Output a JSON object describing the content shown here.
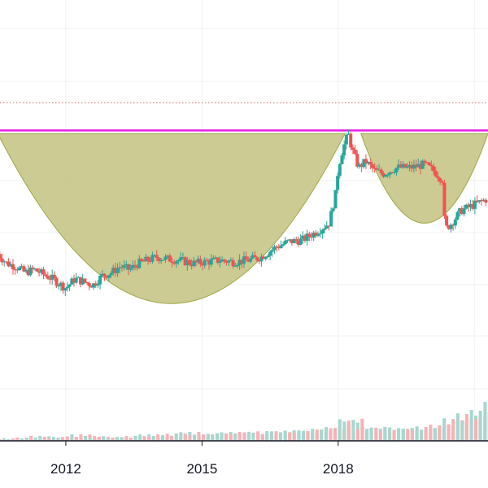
{
  "colors": {
    "up": "#26a69a",
    "down": "#ef5350",
    "volume_up": "#a7d7cf",
    "volume_down": "#f5b3b7",
    "pattern_fill": "#c9c98e",
    "pattern_stroke": "#9aa43c",
    "resistance_line": "#e81ee8",
    "dotted_line": "#e06060",
    "grid": "#eef0f3"
  },
  "chart_data": {
    "type": "candlestick",
    "title": "",
    "xlabel": "",
    "ylabel": "",
    "x_ticks": [
      "2012",
      "2015",
      "2018"
    ],
    "x_range": [
      2010.55,
      2021.3
    ],
    "y_range": [
      0,
      100
    ],
    "grid": true,
    "resistance_level": 82,
    "dotted_level": 91,
    "patterns": [
      {
        "name": "cup",
        "start": 2010.5,
        "end": 2018.15,
        "rim": 81,
        "bottom": 26
      },
      {
        "name": "handle",
        "start": 2018.5,
        "end": 2021.3,
        "rim": 81,
        "bottom": 52
      }
    ],
    "trend": [
      [
        2010.5,
        42
      ],
      [
        2010.7,
        39
      ],
      [
        2010.9,
        38
      ],
      [
        2011.1,
        36
      ],
      [
        2011.3,
        37
      ],
      [
        2011.5,
        35.5
      ],
      [
        2011.7,
        34
      ],
      [
        2011.9,
        32
      ],
      [
        2012.0,
        31
      ],
      [
        2012.2,
        34
      ],
      [
        2012.4,
        33
      ],
      [
        2012.6,
        32
      ],
      [
        2012.8,
        35
      ],
      [
        2013.0,
        36
      ],
      [
        2013.2,
        38
      ],
      [
        2013.4,
        37
      ],
      [
        2013.6,
        39
      ],
      [
        2013.8,
        40
      ],
      [
        2014.0,
        41
      ],
      [
        2014.2,
        40.5
      ],
      [
        2014.5,
        40
      ],
      [
        2014.8,
        39
      ],
      [
        2015.1,
        39.5
      ],
      [
        2015.4,
        40
      ],
      [
        2015.7,
        39.5
      ],
      [
        2016.0,
        40
      ],
      [
        2016.3,
        41
      ],
      [
        2016.6,
        44
      ],
      [
        2016.9,
        46
      ],
      [
        2017.2,
        46.5
      ],
      [
        2017.5,
        49
      ],
      [
        2017.8,
        52
      ],
      [
        2017.95,
        62
      ],
      [
        2018.0,
        70
      ],
      [
        2018.1,
        76
      ],
      [
        2018.22,
        81
      ],
      [
        2018.3,
        76
      ],
      [
        2018.45,
        70
      ],
      [
        2018.6,
        72
      ],
      [
        2018.8,
        69
      ],
      [
        2019.0,
        68
      ],
      [
        2019.3,
        70
      ],
      [
        2019.6,
        70
      ],
      [
        2019.9,
        71
      ],
      [
        2020.1,
        69
      ],
      [
        2020.3,
        66
      ],
      [
        2020.35,
        50
      ],
      [
        2020.5,
        52
      ],
      [
        2020.7,
        56
      ],
      [
        2021.0,
        58
      ],
      [
        2021.3,
        60
      ]
    ],
    "volume": [
      [
        2010.5,
        3,
        1
      ],
      [
        2010.8,
        4,
        0
      ],
      [
        2011.1,
        6,
        1
      ],
      [
        2011.4,
        5,
        0
      ],
      [
        2011.7,
        4,
        1
      ],
      [
        2012.0,
        8,
        0
      ],
      [
        2012.3,
        6,
        1
      ],
      [
        2012.6,
        5,
        0
      ],
      [
        2012.9,
        4,
        1
      ],
      [
        2013.2,
        6,
        0
      ],
      [
        2013.5,
        8,
        1
      ],
      [
        2013.8,
        6,
        0
      ],
      [
        2014.1,
        9,
        0
      ],
      [
        2014.4,
        11,
        1
      ],
      [
        2014.7,
        8,
        0
      ],
      [
        2015.0,
        9,
        1
      ],
      [
        2015.3,
        11,
        1
      ],
      [
        2015.6,
        10,
        0
      ],
      [
        2015.9,
        12,
        1
      ],
      [
        2016.2,
        9,
        0
      ],
      [
        2016.5,
        13,
        1
      ],
      [
        2016.8,
        12,
        0
      ],
      [
        2017.1,
        14,
        1
      ],
      [
        2017.4,
        16,
        1
      ],
      [
        2017.7,
        18,
        0
      ],
      [
        2018.0,
        28,
        1
      ],
      [
        2018.2,
        16,
        0
      ],
      [
        2018.5,
        18,
        1
      ],
      [
        2018.8,
        15,
        0
      ],
      [
        2019.1,
        17,
        1
      ],
      [
        2019.4,
        14,
        0
      ],
      [
        2019.7,
        18,
        1
      ],
      [
        2020.0,
        20,
        0
      ],
      [
        2020.3,
        28,
        0
      ],
      [
        2020.6,
        34,
        1
      ],
      [
        2020.9,
        38,
        1
      ],
      [
        2021.2,
        48,
        0
      ]
    ]
  }
}
